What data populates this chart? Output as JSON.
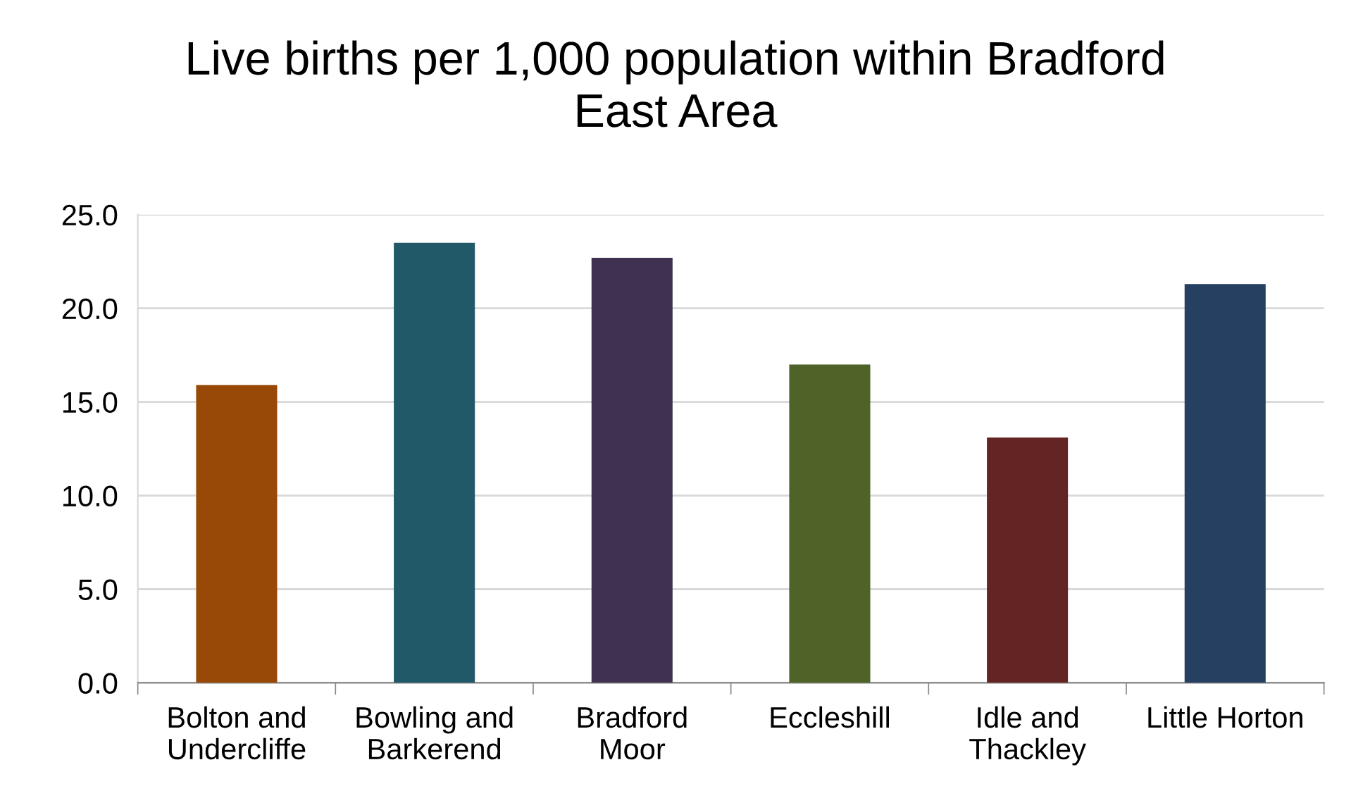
{
  "chart_data": {
    "type": "bar",
    "title": "Live births per 1,000 population within Bradford\nEast Area",
    "categories": [
      "Bolton and\nUndercliffe",
      "Bowling and\nBarkerend",
      "Bradford\nMoor",
      "Eccleshill",
      "Idle and\nThackley",
      "Little Horton"
    ],
    "values": [
      15.9,
      23.5,
      22.7,
      17.0,
      13.1,
      21.3
    ],
    "colors": [
      "#984807",
      "#215968",
      "#403151",
      "#4f6228",
      "#632523",
      "#254061"
    ],
    "ylim": [
      0,
      25
    ],
    "yticks": [
      {
        "value": 0,
        "label": "0.0"
      },
      {
        "value": 5,
        "label": "5.0"
      },
      {
        "value": 10,
        "label": "10.0"
      },
      {
        "value": 15,
        "label": "15.0"
      },
      {
        "value": 20,
        "label": "20.0"
      },
      {
        "value": 25,
        "label": "25.0"
      }
    ],
    "grid": "y",
    "legend": false
  }
}
